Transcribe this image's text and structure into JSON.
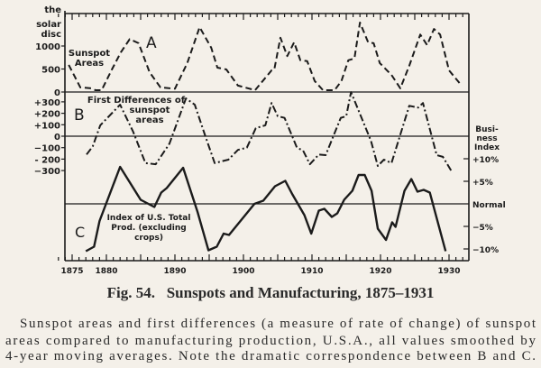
{
  "chart_data": {
    "type": "line",
    "title": "Fig. 54.   Sunspots and Manufacturing, 1875–1931",
    "caption_lines": [
      "Sunspot areas and first differences (a measure of rate of change) of sunspot",
      "areas compared to manufacturing production, U.S.A., all values smoothed by",
      "4-year moving averages. Note the dramatic correspondence between B and C."
    ],
    "xlabel": "",
    "x_ticks": [
      "1875",
      "1880",
      "1890",
      "1900",
      "1910",
      "1920",
      "1930"
    ],
    "x_tick_years": [
      1875,
      1880,
      1890,
      1900,
      1910,
      1920,
      1930
    ],
    "xlim": [
      1872.5,
      1931.5
    ],
    "grid": false,
    "left_unit_lines": [
      "the",
      "solar",
      "disc"
    ],
    "panels": [
      {
        "letter": "A",
        "label_lines": [
          "Sunspot",
          "Areas"
        ],
        "style": "dashed",
        "ylim": [
          0,
          1700
        ],
        "y_ticks": [
          "1000",
          "500",
          "0"
        ],
        "y_tick_values": [
          1000,
          500,
          0
        ],
        "x": [
          1874.5,
          1876.2,
          1877.8,
          1878.4,
          1879.3,
          1880.8,
          1882.1,
          1883.4,
          1884.7,
          1886.3,
          1887.9,
          1890,
          1891.8,
          1893.6,
          1895.3,
          1896.2,
          1897.5,
          1899.2,
          1901.7,
          1904.1,
          1904.5,
          1905.4,
          1906.4,
          1907.4,
          1908.3,
          1909.3,
          1910.4,
          1911.6,
          1913.3,
          1914.3,
          1915.3,
          1916.2,
          1917,
          1918.2,
          1919,
          1919.9,
          1921.6,
          1922.9,
          1924.2,
          1925.8,
          1926.8,
          1927.8,
          1928.7,
          1930,
          1931.6
        ],
        "values": [
          590,
          100,
          80,
          40,
          40,
          490,
          860,
          1150,
          1060,
          430,
          100,
          70,
          630,
          1410,
          960,
          530,
          490,
          140,
          40,
          470,
          490,
          1180,
          780,
          1080,
          690,
          670,
          240,
          40,
          40,
          240,
          690,
          730,
          1510,
          1080,
          1060,
          630,
          370,
          80,
          570,
          1250,
          1020,
          1370,
          1250,
          470,
          180
        ]
      },
      {
        "letter": "B",
        "label_lines": [
          "First Differences of",
          "sunspot",
          "areas"
        ],
        "style": "dash-dot",
        "ylim": [
          -380,
          420
        ],
        "y_ticks": [
          "+300",
          "+200",
          "+100",
          "0",
          "−100",
          "- 200",
          "−300"
        ],
        "y_tick_values": [
          300,
          200,
          100,
          0,
          -100,
          -200,
          -300
        ],
        "x": [
          1877.1,
          1878,
          1879.1,
          1882,
          1883.9,
          1885.7,
          1887.2,
          1889.2,
          1891.6,
          1892.9,
          1894.5,
          1895.8,
          1897.8,
          1899.2,
          1900.5,
          1901.8,
          1903.2,
          1904.1,
          1905,
          1906,
          1907.8,
          1908.7,
          1909.7,
          1911,
          1912,
          1914.2,
          1915,
          1915.7,
          1918.6,
          1919.6,
          1920.5,
          1921.6,
          1924.2,
          1925.5,
          1926.2,
          1928.2,
          1929.1,
          1930.3
        ],
        "values": [
          -160,
          -90,
          95,
          275,
          40,
          -235,
          -245,
          -65,
          330,
          275,
          -10,
          -235,
          -205,
          -120,
          -100,
          70,
          95,
          290,
          175,
          160,
          -100,
          -125,
          -245,
          -160,
          -165,
          160,
          175,
          385,
          -40,
          -260,
          -205,
          -235,
          265,
          250,
          290,
          -165,
          -180,
          -300
        ]
      },
      {
        "letter": "C",
        "label_lines": [
          "Index of U.S. Total",
          "Prod. (excluding",
          "crops)"
        ],
        "style": "solid",
        "right_axis_title_lines": [
          "Busi-",
          "ness",
          "Index"
        ],
        "y_ticks": [
          "+10%",
          "+5%",
          "Normal",
          "−5%",
          "−10%"
        ],
        "y_tick_values": [
          10,
          5,
          0,
          -5,
          -10
        ],
        "x": [
          1877,
          1878.2,
          1879,
          1882,
          1885,
          1887,
          1888,
          1888.8,
          1891.2,
          1893.3,
          1894.9,
          1896.1,
          1897.1,
          1897.9,
          1901.6,
          1902.9,
          1904.6,
          1906.1,
          1907.1,
          1908.9,
          1909.9,
          1911,
          1911.8,
          1912.9,
          1913.7,
          1914.7,
          1915.9,
          1916.8,
          1917.7,
          1918.7,
          1919.6,
          1920.8,
          1921.7,
          1922.2,
          1923.5,
          1924.5,
          1925.4,
          1926.3,
          1927.2,
          1929.5
        ],
        "values": [
          -10.5,
          -9.5,
          -3.8,
          8.2,
          0.9,
          -0.7,
          2.5,
          3.5,
          8,
          -1.8,
          -10.3,
          -9.5,
          -6.6,
          -6.9,
          0,
          0.7,
          3.9,
          5.1,
          2.2,
          -2.5,
          -6.6,
          -1.5,
          -1.1,
          -2.9,
          -2.1,
          0.9,
          2.9,
          6.4,
          6.4,
          2.9,
          -5.5,
          -8,
          -4.1,
          -5.1,
          2.9,
          5.5,
          2.7,
          3.1,
          2.5,
          -10.5
        ]
      }
    ]
  },
  "colors": {
    "ink": "#1b1b1b",
    "paper": "#f4f0e9"
  }
}
